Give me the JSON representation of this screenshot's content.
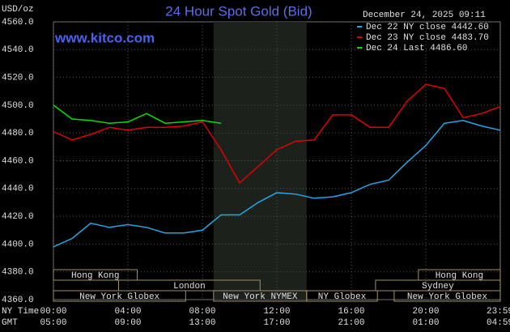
{
  "chart_data": {
    "type": "line",
    "title": "24 Hour Spot Gold (Bid)",
    "subtitle": "www.kitco.com",
    "timestamp": "December 24, 2025 09:11",
    "y_label": "USD/oz",
    "x_row_labels": [
      "NY Time",
      "GMT"
    ],
    "x": [
      0,
      1,
      2,
      3,
      4,
      5,
      6,
      7,
      8,
      9,
      10,
      11,
      12,
      13,
      14,
      15,
      16,
      17,
      18,
      19,
      20,
      21,
      22,
      23,
      24
    ],
    "xlim": [
      0,
      24
    ],
    "xticks": [
      {
        "value": 0,
        "label": "00:00"
      },
      {
        "value": 4,
        "label": "04:00"
      },
      {
        "value": 8,
        "label": "08:00"
      },
      {
        "value": 12,
        "label": "12:00"
      },
      {
        "value": 16,
        "label": "16:00"
      },
      {
        "value": 20,
        "label": "20:00"
      },
      {
        "value": 23.98,
        "label": "23:59"
      }
    ],
    "gmt_labels": [
      "05:00",
      "09:00",
      "13:00",
      "17:00",
      "21:00",
      "01:00",
      "04:59"
    ],
    "ylim": [
      4360,
      4560
    ],
    "yticks": [
      {
        "value": 4360,
        "label": "4360.0"
      },
      {
        "value": 4380,
        "label": "4380.0"
      },
      {
        "value": 4400,
        "label": "4400.0"
      },
      {
        "value": 4420,
        "label": "4420.0"
      },
      {
        "value": 4440,
        "label": "4440.0"
      },
      {
        "value": 4460,
        "label": "4460.0"
      },
      {
        "value": 4480,
        "label": "4480.0"
      },
      {
        "value": 4500,
        "label": "4500.0"
      },
      {
        "value": 4520,
        "label": "4520.0"
      },
      {
        "value": 4540,
        "label": "4540.0"
      },
      {
        "value": 4560,
        "label": "4560.0"
      }
    ],
    "grid": true,
    "series": [
      {
        "name": "Dec 22 NY close 4442.60",
        "color": "#1fa8e8",
        "values": [
          4398,
          4404,
          4415,
          4412,
          4414,
          4412,
          4408,
          4408,
          4410,
          4421,
          4421,
          4430,
          4437,
          4436,
          4433,
          4434,
          4437,
          4443,
          4446,
          4459,
          4471,
          4487,
          4489,
          4485,
          4482
        ]
      },
      {
        "name": "Dec 23 NY close 4483.70",
        "color": "#e00000",
        "values": [
          4481,
          4475,
          4479,
          4484,
          4482,
          4484,
          4484,
          4485,
          4488,
          4468,
          4444,
          4456,
          4468,
          4474,
          4475,
          4493,
          4493,
          4484,
          4484,
          4503,
          4515,
          4512,
          4491,
          4494,
          4499
        ]
      },
      {
        "name": "Dec 24 Last 4486.60",
        "color": "#00e000",
        "values": [
          4500,
          4490,
          4489,
          4487,
          4488,
          4494,
          4487,
          4488,
          4489,
          4487,
          null,
          null,
          null,
          null,
          null,
          null,
          null,
          null,
          null,
          null,
          null,
          null,
          null,
          null,
          null
        ]
      }
    ],
    "sessions": [
      [
        {
          "name": "Hong Kong",
          "start": 0,
          "end": 4.5
        },
        {
          "name": "Hong Kong",
          "start": 19.6,
          "end": 24
        }
      ],
      [
        {
          "name": "London",
          "start": 3.5,
          "end": 11.1
        },
        {
          "name": "Sydney",
          "start": 17.3,
          "end": 24
        }
      ],
      [
        {
          "name": "New York Globex",
          "start": 0,
          "end": 7.1
        },
        {
          "name": "New York NYMEX",
          "start": 8.6,
          "end": 13.6
        },
        {
          "name": "NY Globex",
          "start": 13.6,
          "end": 17.4
        },
        {
          "name": "New York Globex",
          "start": 18.3,
          "end": 24
        }
      ]
    ]
  }
}
